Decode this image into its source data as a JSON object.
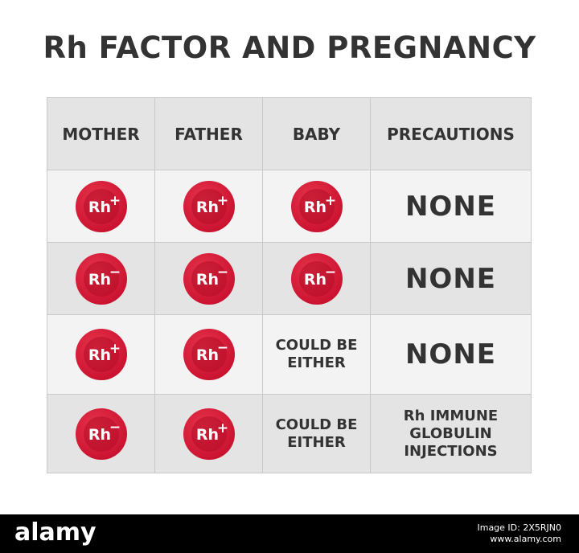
{
  "title": "Rh FACTOR AND PREGNANCY",
  "table": {
    "headers": [
      "MOTHER",
      "FATHER",
      "BABY",
      "PRECAUTIONS"
    ],
    "rows": [
      {
        "mother": "+",
        "father": "+",
        "baby": "+",
        "baby_text": [
          "",
          ""
        ],
        "precautions": [
          "NONE"
        ]
      },
      {
        "mother": "−",
        "father": "−",
        "baby": "−",
        "baby_text": [
          "",
          ""
        ],
        "precautions": [
          "NONE"
        ]
      },
      {
        "mother": "+",
        "father": "−",
        "baby": "",
        "baby_text": [
          "COULD BE",
          "EITHER"
        ],
        "precautions": [
          "NONE"
        ]
      },
      {
        "mother": "−",
        "father": "+",
        "baby": "",
        "baby_text": [
          "COULD BE",
          "EITHER"
        ],
        "precautions": [
          "Rh IMMUNE",
          "GLOBULIN",
          "INJECTIONS"
        ]
      }
    ]
  },
  "badge": {
    "label": "Rh",
    "color": "#c8102e"
  },
  "footer": {
    "brand": "alamy",
    "image_id": "Image ID: 2X5RJN0",
    "url": "www.alamy.com"
  }
}
